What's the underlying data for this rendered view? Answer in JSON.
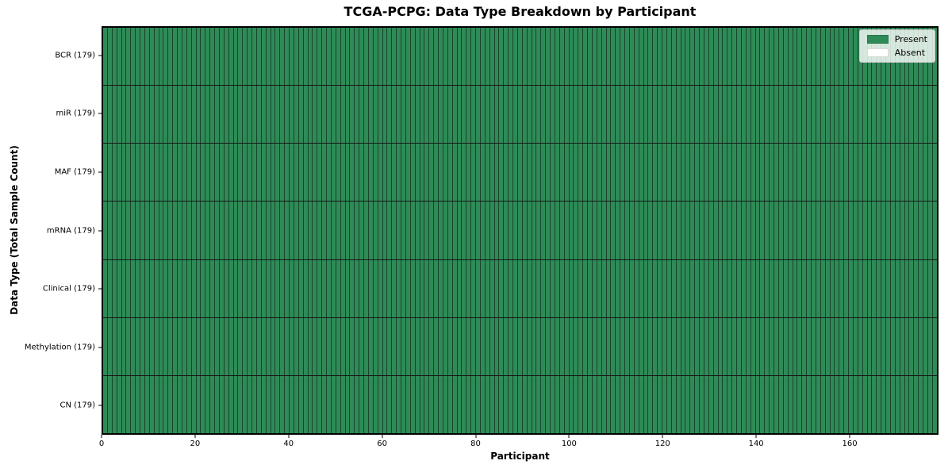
{
  "chart_data": {
    "type": "heatmap",
    "title": "TCGA-PCPG: Data Type Breakdown by Participant",
    "xlabel": "Participant",
    "ylabel": "Data Type (Total Sample Count)",
    "x_range": [
      0,
      179
    ],
    "x_ticks": [
      0,
      20,
      40,
      60,
      80,
      100,
      120,
      140,
      160
    ],
    "n_participants": 179,
    "rows": [
      {
        "name": "BCR",
        "label": "BCR (179)",
        "total": 179,
        "present_count": 179,
        "absent_count": 0
      },
      {
        "name": "miR",
        "label": "miR (179)",
        "total": 179,
        "present_count": 179,
        "absent_count": 0
      },
      {
        "name": "MAF",
        "label": "MAF (179)",
        "total": 179,
        "present_count": 179,
        "absent_count": 0
      },
      {
        "name": "mRNA",
        "label": "mRNA (179)",
        "total": 179,
        "present_count": 179,
        "absent_count": 0
      },
      {
        "name": "Clinical",
        "label": "Clinical (179)",
        "total": 179,
        "present_count": 179,
        "absent_count": 0
      },
      {
        "name": "Methylation",
        "label": "Methylation (179)",
        "total": 179,
        "present_count": 179,
        "absent_count": 0
      },
      {
        "name": "CN",
        "label": "CN (179)",
        "total": 179,
        "present_count": 179,
        "absent_count": 0
      }
    ],
    "legend": {
      "position": "upper right",
      "entries": [
        {
          "label": "Present",
          "color": "#2e8b57"
        },
        {
          "label": "Absent",
          "color": "#ffffff"
        }
      ]
    },
    "colors": {
      "present": "#2e8b57",
      "absent": "#ffffff",
      "cell_edge": "rgba(0,0,0,0.5)",
      "row_divider": "#161616",
      "plot_border": "#000000"
    },
    "grid": "cell-borders",
    "legend_visible": true
  }
}
